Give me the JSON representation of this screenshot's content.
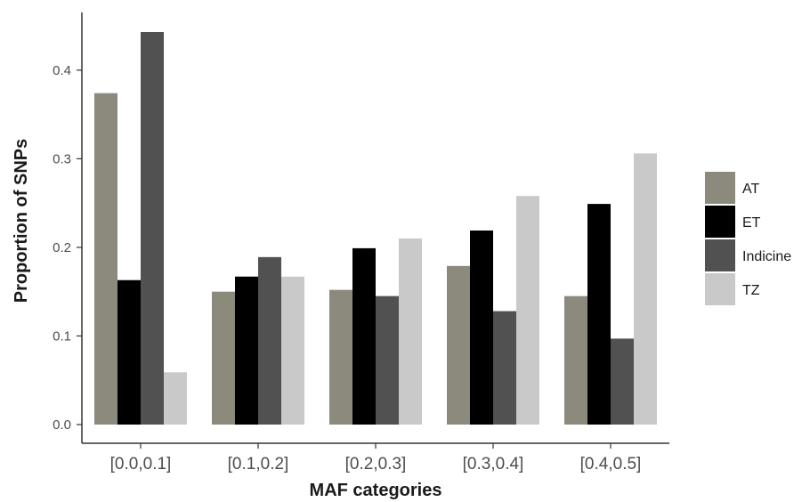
{
  "chart_data": {
    "type": "bar",
    "xlabel": "MAF categories",
    "ylabel": "Proportion of SNPs",
    "ylim": [
      0,
      0.445
    ],
    "yticks": [
      "0.0",
      "0.1",
      "0.2",
      "0.3",
      "0.4"
    ],
    "grid": false,
    "legend_position": "right",
    "categories": [
      "[0.0,0.1]",
      "[0.1,0.2]",
      "[0.2,0.3]",
      "[0.3,0.4]",
      "[0.4,0.5]"
    ],
    "series": [
      {
        "name": "AT",
        "color": "#8c8a7c",
        "values": [
          0.374,
          0.15,
          0.152,
          0.179,
          0.145
        ]
      },
      {
        "name": "ET",
        "color": "#000000",
        "values": [
          0.163,
          0.167,
          0.199,
          0.219,
          0.249
        ]
      },
      {
        "name": "Indicine",
        "color": "#515151",
        "values": [
          0.443,
          0.189,
          0.145,
          0.128,
          0.097
        ]
      },
      {
        "name": "TZ",
        "color": "#c9c9c9",
        "values": [
          0.059,
          0.167,
          0.21,
          0.258,
          0.306
        ]
      }
    ]
  }
}
